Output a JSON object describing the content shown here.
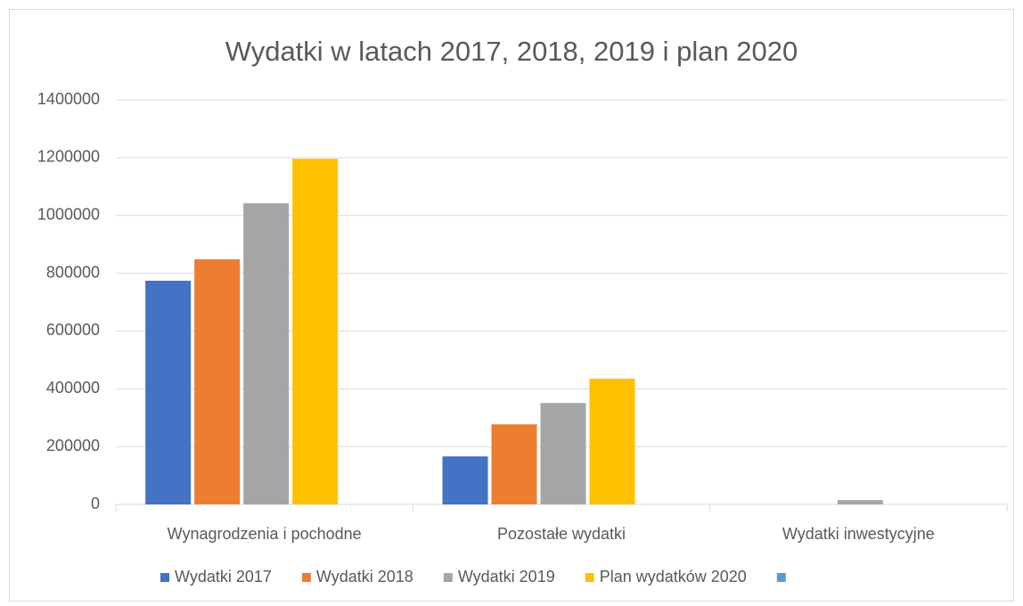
{
  "chart_data": {
    "type": "bar",
    "title": "Wydatki w latach 2017, 2018, 2019 i plan 2020",
    "categories": [
      "Wynagrodzenia i pochodne",
      "Pozostałe wydatki",
      "Wydatki inwestycyjne"
    ],
    "series": [
      {
        "name": "Wydatki 2017",
        "color": "#4472c4",
        "values": [
          774000,
          166000,
          0
        ]
      },
      {
        "name": "Wydatki 2018",
        "color": "#ed7d31",
        "values": [
          848000,
          277000,
          0
        ]
      },
      {
        "name": "Wydatki 2019",
        "color": "#a5a5a5",
        "values": [
          1042000,
          351000,
          15000
        ]
      },
      {
        "name": "Plan wydatków 2020",
        "color": "#ffc000",
        "values": [
          1196000,
          435000,
          0
        ]
      },
      {
        "name": null,
        "color": "#5b9bd5",
        "values": [
          null,
          null,
          null
        ]
      }
    ],
    "ylim": [
      0,
      1400000
    ],
    "yticks": [
      0,
      200000,
      400000,
      600000,
      800000,
      1000000,
      1200000,
      1400000
    ],
    "grid": true,
    "legend": "bottom"
  }
}
